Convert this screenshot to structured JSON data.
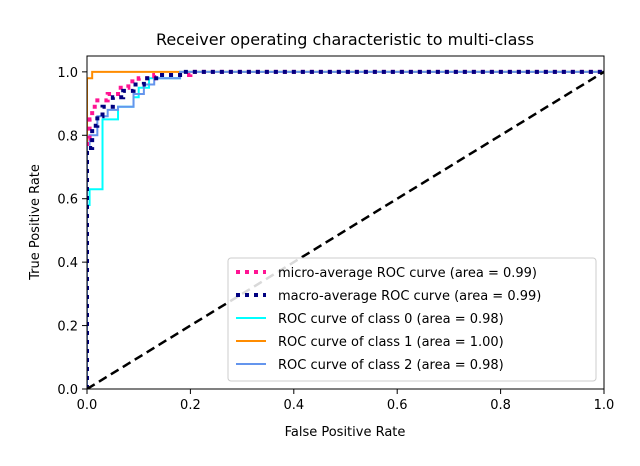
{
  "chart_data": {
    "type": "line",
    "title": "Receiver operating characteristic to multi-class",
    "xlabel": "False Positive Rate",
    "ylabel": "True Positive Rate",
    "xlim": [
      0.0,
      1.0
    ],
    "ylim": [
      0.0,
      1.05
    ],
    "xticks": [
      "0.0",
      "0.2",
      "0.4",
      "0.6",
      "0.8",
      "1.0"
    ],
    "yticks": [
      "0.0",
      "0.2",
      "0.4",
      "0.6",
      "0.8",
      "1.0"
    ],
    "grid": false,
    "legend_position": "lower-right",
    "series": [
      {
        "name": "micro-average ROC curve (area = 0.99)",
        "color": "#ff1493",
        "style": "dotted",
        "x": [
          0.0,
          0.0,
          0.005,
          0.005,
          0.01,
          0.01,
          0.02,
          0.02,
          0.04,
          0.04,
          0.06,
          0.06,
          0.08,
          0.08,
          0.1,
          0.1,
          0.13,
          0.13,
          0.2,
          0.2,
          1.0
        ],
        "y": [
          0.0,
          0.79,
          0.79,
          0.85,
          0.85,
          0.89,
          0.89,
          0.91,
          0.91,
          0.93,
          0.93,
          0.95,
          0.95,
          0.97,
          0.97,
          0.98,
          0.98,
          0.99,
          0.99,
          1.0,
          1.0
        ]
      },
      {
        "name": "macro-average ROC curve (area = 0.99)",
        "color": "#000080",
        "style": "dotted",
        "x": [
          0.0,
          0.0,
          0.01,
          0.01,
          0.02,
          0.02,
          0.03,
          0.03,
          0.05,
          0.05,
          0.07,
          0.07,
          0.09,
          0.09,
          0.11,
          0.11,
          0.14,
          0.14,
          0.18,
          0.18,
          1.0
        ],
        "y": [
          0.0,
          0.76,
          0.76,
          0.83,
          0.83,
          0.86,
          0.86,
          0.89,
          0.89,
          0.92,
          0.92,
          0.94,
          0.94,
          0.96,
          0.96,
          0.98,
          0.98,
          0.99,
          0.99,
          1.0,
          1.0
        ]
      },
      {
        "name": "ROC curve of class 0 (area = 0.98)",
        "color": "#00ffff",
        "style": "solid",
        "x": [
          0.0,
          0.0,
          0.005,
          0.005,
          0.03,
          0.03,
          0.06,
          0.06,
          0.09,
          0.09,
          0.1,
          0.1,
          0.12,
          0.12,
          0.18,
          0.18,
          1.0
        ],
        "y": [
          0.0,
          0.58,
          0.58,
          0.63,
          0.63,
          0.85,
          0.85,
          0.89,
          0.89,
          0.92,
          0.92,
          0.95,
          0.95,
          0.98,
          0.98,
          1.0,
          1.0
        ]
      },
      {
        "name": "ROC curve of class 1 (area = 1.00)",
        "color": "#ff8c00",
        "style": "solid",
        "x": [
          0.0,
          0.0,
          0.01,
          0.01,
          1.0
        ],
        "y": [
          0.0,
          0.98,
          0.98,
          1.0,
          1.0
        ]
      },
      {
        "name": "ROC curve of class 2 (area = 0.98)",
        "color": "#6495ed",
        "style": "solid",
        "x": [
          0.0,
          0.0,
          0.005,
          0.005,
          0.02,
          0.02,
          0.04,
          0.04,
          0.06,
          0.06,
          0.09,
          0.09,
          0.11,
          0.11,
          0.13,
          0.13,
          0.18,
          0.18,
          1.0
        ],
        "y": [
          0.0,
          0.77,
          0.77,
          0.8,
          0.8,
          0.86,
          0.86,
          0.88,
          0.88,
          0.89,
          0.89,
          0.93,
          0.93,
          0.96,
          0.96,
          0.98,
          0.98,
          1.0,
          1.0
        ]
      }
    ],
    "reference_line": {
      "x": [
        0.0,
        1.0
      ],
      "y": [
        0.0,
        1.0
      ],
      "color": "#000000",
      "style": "dashed"
    }
  }
}
